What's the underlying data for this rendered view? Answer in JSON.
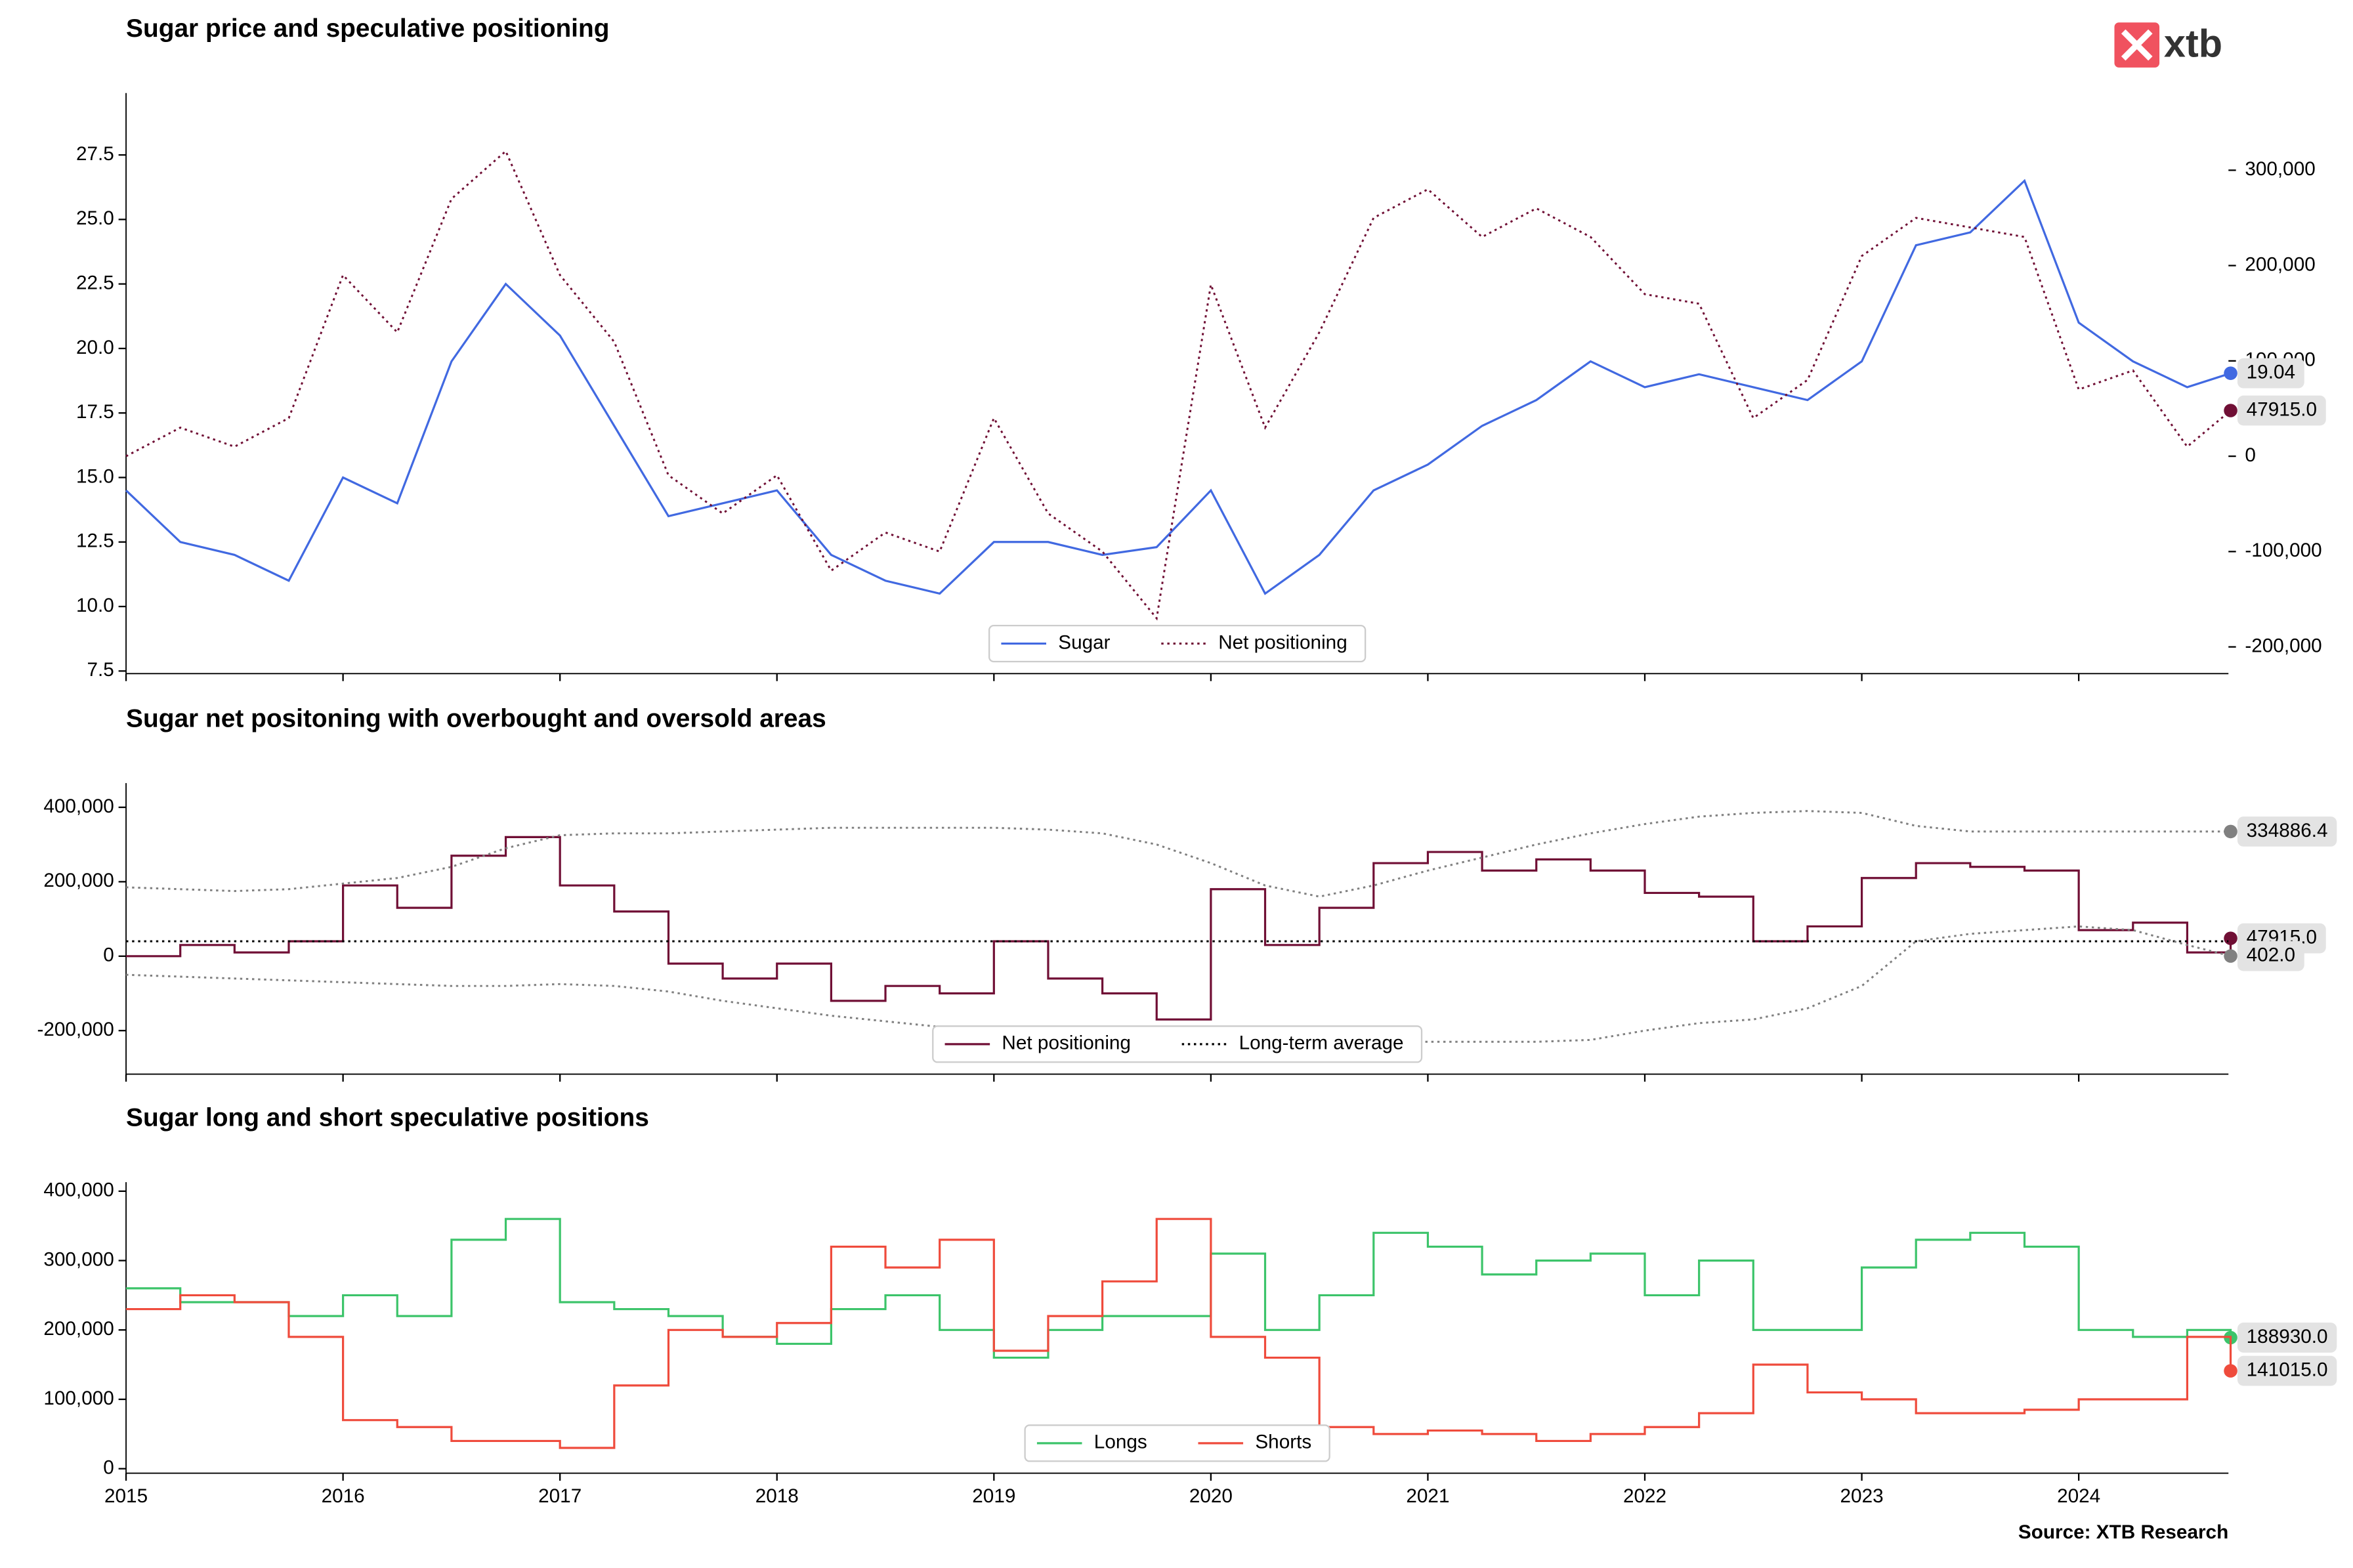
{
  "logo": "xtb",
  "source": "Source: XTB Research",
  "chart_data": [
    {
      "type": "line",
      "title": "Sugar price and speculative positioning",
      "legend": "lower center",
      "xtick_labels": false,
      "x": [
        2015,
        2015.25,
        2015.5,
        2015.75,
        2016,
        2016.25,
        2016.5,
        2016.75,
        2017,
        2017.25,
        2017.5,
        2017.75,
        2018,
        2018.25,
        2018.5,
        2018.75,
        2019,
        2019.25,
        2019.5,
        2019.75,
        2020,
        2020.25,
        2020.5,
        2020.75,
        2021,
        2021.25,
        2021.5,
        2021.75,
        2022,
        2022.25,
        2022.5,
        2022.75,
        2023,
        2023.25,
        2023.5,
        2023.75,
        2024,
        2024.25,
        2024.5,
        2024.7
      ],
      "xlim": [
        2015,
        2024.69
      ],
      "xticks": [
        2015,
        2016,
        2017,
        2018,
        2019,
        2020,
        2021,
        2022,
        2023,
        2024
      ],
      "ylim": [
        7.4,
        29.9
      ],
      "yticks": [
        7.5,
        {
          "value": 10,
          "label": "10.0"
        },
        12.5,
        {
          "value": 15,
          "label": "15.0"
        },
        17.5,
        {
          "value": 20,
          "label": "20.0"
        },
        22.5,
        {
          "value": 25,
          "label": "25.0"
        },
        27.5
      ],
      "y2lim": [
        -228000,
        381000
      ],
      "y2ticks": [
        {
          "value": -200000,
          "label": "-200,000"
        },
        {
          "value": -100000,
          "label": "-100,000"
        },
        0,
        {
          "value": 100000,
          "label": "100,000"
        },
        {
          "value": 200000,
          "label": "200,000"
        },
        {
          "value": 300000,
          "label": "300,000"
        }
      ],
      "series": [
        {
          "name": "Sugar",
          "color": "#4169e1",
          "end_label": "19.04",
          "values": [
            14.5,
            12.5,
            12.0,
            11.0,
            15.0,
            14.0,
            19.5,
            22.5,
            20.5,
            17.0,
            13.5,
            14.0,
            14.5,
            12.0,
            11.0,
            10.5,
            12.5,
            12.5,
            12.0,
            12.3,
            14.5,
            10.5,
            12.0,
            14.5,
            15.5,
            17.0,
            18.0,
            19.5,
            18.5,
            19.0,
            18.5,
            18.0,
            19.5,
            24.0,
            24.5,
            26.5,
            21.0,
            19.5,
            18.5,
            19.04
          ]
        },
        {
          "name": "Net positioning",
          "color": "#700f35",
          "style": "dotted",
          "axis": "y2",
          "end_label": "47915.0",
          "values": [
            0,
            30000,
            10000,
            40000,
            190000,
            130000,
            270000,
            320000,
            190000,
            120000,
            -20000,
            -60000,
            -20000,
            -120000,
            -80000,
            -100000,
            40000,
            -60000,
            -100000,
            -170000,
            180000,
            30000,
            130000,
            250000,
            280000,
            230000,
            260000,
            230000,
            170000,
            160000,
            40000,
            80000,
            210000,
            250000,
            240000,
            230000,
            70000,
            90000,
            10000,
            47915
          ]
        }
      ]
    },
    {
      "type": "line",
      "title": "Sugar net positoning with overbought and oversold areas",
      "legend": "lower center",
      "xtick_labels": false,
      "x": [
        2015,
        2015.25,
        2015.5,
        2015.75,
        2016,
        2016.25,
        2016.5,
        2016.75,
        2017,
        2017.25,
        2017.5,
        2017.75,
        2018,
        2018.25,
        2018.5,
        2018.75,
        2019,
        2019.25,
        2019.5,
        2019.75,
        2020,
        2020.25,
        2020.5,
        2020.75,
        2021,
        2021.25,
        2021.5,
        2021.75,
        2022,
        2022.25,
        2022.5,
        2022.75,
        2023,
        2023.25,
        2023.5,
        2023.75,
        2024,
        2024.25,
        2024.5,
        2024.7
      ],
      "xlim": [
        2015,
        2024.69
      ],
      "xticks": [
        2015,
        2016,
        2017,
        2018,
        2019,
        2020,
        2021,
        2022,
        2023,
        2024
      ],
      "ylim": [
        -317000,
        465000
      ],
      "yticks": [
        {
          "value": -200000,
          "label": "-200,000"
        },
        0,
        {
          "value": 200000,
          "label": "200,000"
        },
        {
          "value": 400000,
          "label": "400,000"
        }
      ],
      "series": [
        {
          "name": "Net positioning",
          "color": "#700f35",
          "step": true,
          "end_label": "47915.0",
          "values": [
            0,
            30000,
            10000,
            40000,
            190000,
            130000,
            270000,
            320000,
            190000,
            120000,
            -20000,
            -60000,
            -20000,
            -120000,
            -80000,
            -100000,
            40000,
            -60000,
            -100000,
            -170000,
            180000,
            30000,
            130000,
            250000,
            280000,
            230000,
            260000,
            230000,
            170000,
            160000,
            40000,
            80000,
            210000,
            250000,
            240000,
            230000,
            70000,
            90000,
            10000,
            47915
          ]
        },
        {
          "name": "Long-term average",
          "color": "#000000",
          "style": "dotted",
          "value": 40000
        },
        {
          "color": "#808080",
          "style": "dotted",
          "end_label": "334886.4",
          "values": [
            185000,
            180000,
            175000,
            180000,
            195000,
            210000,
            240000,
            290000,
            325000,
            330000,
            330000,
            335000,
            340000,
            345000,
            345000,
            345000,
            345000,
            340000,
            330000,
            300000,
            250000,
            190000,
            160000,
            190000,
            230000,
            265000,
            300000,
            330000,
            355000,
            375000,
            385000,
            390000,
            385000,
            350000,
            335000,
            335000,
            335000,
            335000,
            335000,
            334886.4
          ]
        },
        {
          "color": "#808080",
          "style": "dotted",
          "end_label": "402.0",
          "values": [
            -50000,
            -55000,
            -60000,
            -65000,
            -70000,
            -75000,
            -80000,
            -80000,
            -75000,
            -80000,
            -95000,
            -120000,
            -140000,
            -160000,
            -175000,
            -190000,
            -190000,
            -195000,
            -200000,
            -210000,
            -210000,
            -220000,
            -225000,
            -230000,
            -230000,
            -230000,
            -230000,
            -225000,
            -200000,
            -180000,
            -170000,
            -140000,
            -80000,
            40000,
            60000,
            70000,
            80000,
            70000,
            30000,
            402
          ]
        }
      ]
    },
    {
      "type": "line",
      "title": "Sugar long and short speculative positions",
      "legend": "lower center",
      "xtick_labels": true,
      "x": [
        2015,
        2015.25,
        2015.5,
        2015.75,
        2016,
        2016.25,
        2016.5,
        2016.75,
        2017,
        2017.25,
        2017.5,
        2017.75,
        2018,
        2018.25,
        2018.5,
        2018.75,
        2019,
        2019.25,
        2019.5,
        2019.75,
        2020,
        2020.25,
        2020.5,
        2020.75,
        2021,
        2021.25,
        2021.5,
        2021.75,
        2022,
        2022.25,
        2022.5,
        2022.75,
        2023,
        2023.25,
        2023.5,
        2023.75,
        2024,
        2024.25,
        2024.5,
        2024.7
      ],
      "xlim": [
        2015,
        2024.69
      ],
      "xticks": [
        2015,
        2016,
        2017,
        2018,
        2019,
        2020,
        2021,
        2022,
        2023,
        2024
      ],
      "ylim": [
        -6500,
        413000
      ],
      "yticks": [
        0,
        {
          "value": 100000,
          "label": "100,000"
        },
        {
          "value": 200000,
          "label": "200,000"
        },
        {
          "value": 300000,
          "label": "300,000"
        },
        {
          "value": 400000,
          "label": "400,000"
        }
      ],
      "series": [
        {
          "name": "Longs",
          "color": "#3cc46a",
          "step": true,
          "end_label": "188930.0",
          "values": [
            260000,
            240000,
            240000,
            220000,
            250000,
            220000,
            330000,
            360000,
            240000,
            230000,
            220000,
            190000,
            180000,
            230000,
            250000,
            200000,
            160000,
            200000,
            220000,
            220000,
            310000,
            200000,
            250000,
            340000,
            320000,
            280000,
            300000,
            310000,
            250000,
            300000,
            200000,
            200000,
            290000,
            330000,
            340000,
            320000,
            200000,
            190000,
            200000,
            188930
          ]
        },
        {
          "name": "Shorts",
          "color": "#ef4b3c",
          "step": true,
          "end_label": "141015.0",
          "values": [
            230000,
            250000,
            240000,
            190000,
            70000,
            60000,
            40000,
            40000,
            30000,
            120000,
            200000,
            190000,
            210000,
            320000,
            290000,
            330000,
            170000,
            220000,
            270000,
            360000,
            190000,
            160000,
            60000,
            50000,
            55000,
            50000,
            40000,
            50000,
            60000,
            80000,
            150000,
            110000,
            100000,
            80000,
            80000,
            85000,
            100000,
            100000,
            190000,
            141015
          ]
        }
      ]
    }
  ]
}
